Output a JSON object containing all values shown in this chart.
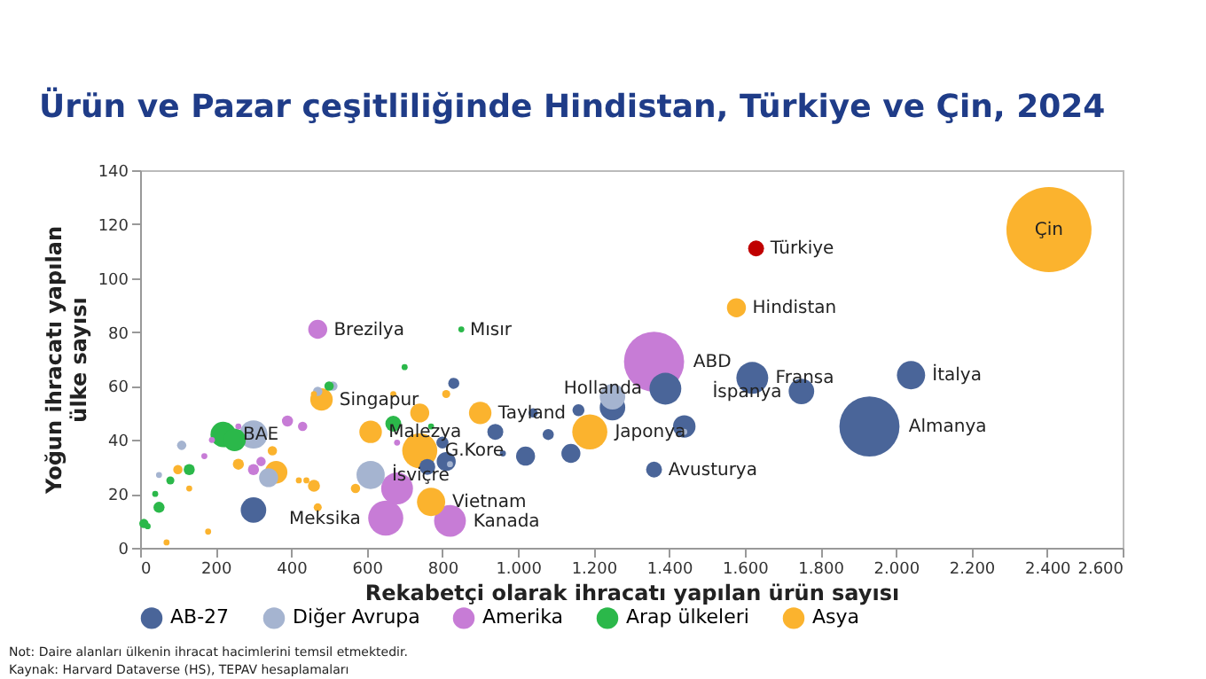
{
  "chart_data": {
    "type": "bubble",
    "title": "Ürün ve Pazar çeşitliliğinde Hindistan, Türkiye ve Çin, 2024",
    "xlabel": "Rekabetçi olarak ihracatı yapılan ürün sayısı",
    "ylabel": "Yoğun ihracatı yapılan\nülke sayısı",
    "xlim": [
      0,
      2600
    ],
    "xticks": [
      0,
      200,
      400,
      600,
      800,
      {
        "value": 1000,
        "label": "1.000"
      },
      {
        "value": 1200,
        "label": "1.200"
      },
      {
        "value": 1400,
        "label": "1.400"
      },
      {
        "value": 1600,
        "label": "1.600"
      },
      {
        "value": 1800,
        "label": "1.800"
      },
      {
        "value": 2000,
        "label": "2.000"
      },
      {
        "value": 2200,
        "label": "2.200"
      },
      {
        "value": 2400,
        "label": "2.400"
      },
      {
        "value": 2600,
        "label": "2.600"
      }
    ],
    "ylim": [
      0,
      140
    ],
    "yticks": [
      0,
      20,
      40,
      60,
      80,
      100,
      120,
      140
    ],
    "grid": false,
    "legend": "bottom",
    "series": [
      {
        "name": "AB-27",
        "color": "#4a6599",
        "x": [
          1930,
          2040,
          1620,
          1750,
          1390,
          1250,
          1440,
          1360,
          1140,
          1020,
          1160,
          1080,
          1040,
          940,
          800,
          810,
          760,
          830,
          960,
          300
        ],
        "values": [
          45,
          64,
          63,
          58,
          59,
          52,
          45,
          29,
          35,
          34,
          51,
          42,
          50,
          43,
          39,
          32,
          30,
          61,
          35,
          14
        ],
        "sizes": [
          0.5,
          0.11,
          0.14,
          0.09,
          0.14,
          0.09,
          0.07,
          0.035,
          0.05,
          0.05,
          0.02,
          0.017,
          0.012,
          0.035,
          0.02,
          0.05,
          0.035,
          0.017,
          0.005,
          0.09
        ]
      },
      {
        "name": "Diğer Avrupa",
        "color": "#a5b4d0",
        "x": [
          610,
          1250,
          300,
          340,
          470,
          510,
          110,
          50,
          1440,
          820
        ],
        "values": [
          27,
          56,
          42,
          26,
          58,
          60,
          38,
          27,
          43,
          31
        ],
        "sizes": [
          0.11,
          0.09,
          0.11,
          0.05,
          0.012,
          0.012,
          0.012,
          0.005,
          0.005,
          0.005
        ]
      },
      {
        "name": "Amerika",
        "color": "#c77cd6",
        "x": [
          1360,
          470,
          650,
          820,
          680,
          390,
          430,
          300,
          320,
          170,
          260,
          190,
          680
        ],
        "values": [
          69,
          81,
          11,
          10,
          22,
          47,
          45,
          29,
          32,
          34,
          45,
          40,
          39
        ],
        "sizes": [
          0.5,
          0.05,
          0.17,
          0.14,
          0.14,
          0.017,
          0.012,
          0.017,
          0.012,
          0.005,
          0.005,
          0.005,
          0.005
        ]
      },
      {
        "name": "Arap ülkeleri",
        "color": "#2bb84a",
        "x": [
          220,
          250,
          850,
          670,
          130,
          80,
          50,
          10,
          40,
          20,
          770,
          700,
          500
        ],
        "values": [
          42,
          40,
          81,
          46,
          29,
          25,
          15,
          9,
          20,
          8,
          45,
          67,
          60
        ],
        "sizes": [
          0.09,
          0.07,
          0.005,
          0.035,
          0.017,
          0.009,
          0.017,
          0.012,
          0.005,
          0.005,
          0.005,
          0.005,
          0.012
        ]
      },
      {
        "name": "Asya",
        "color": "#fbb32e",
        "x": [
          2405,
          1578,
          1190,
          900,
          740,
          770,
          610,
          480,
          740,
          360,
          260,
          350,
          100,
          460,
          470,
          570,
          810,
          130,
          460,
          670,
          70,
          180,
          420,
          440
        ],
        "values": [
          118,
          89,
          43,
          50,
          36,
          17,
          43,
          55,
          50,
          28,
          31,
          36,
          29,
          23,
          15,
          22,
          57,
          22,
          57,
          57,
          2,
          6,
          25,
          25
        ],
        "sizes": [
          1,
          0.05,
          0.17,
          0.07,
          0.17,
          0.11,
          0.07,
          0.07,
          0.05,
          0.07,
          0.017,
          0.012,
          0.012,
          0.02,
          0.009,
          0.012,
          0.009,
          0.005,
          0.005,
          0.005,
          0.005,
          0.005,
          0.005,
          0.005
        ]
      },
      {
        "color": "#c00000",
        "x": [
          1630
        ],
        "values": [
          111
        ],
        "sizes": [
          0.035
        ]
      }
    ],
    "annotations": [
      {
        "text": "Çin",
        "x": 2405,
        "y": 118
      },
      {
        "text": "Türkiye",
        "x": 1630,
        "y": 111
      },
      {
        "text": "Hindistan",
        "x": 1578,
        "y": 89
      },
      {
        "text": "ABD",
        "x": 1360,
        "y": 69
      },
      {
        "text": "Fransa",
        "x": 1620,
        "y": 63
      },
      {
        "text": "Hollanda",
        "x": 1390,
        "y": 59
      },
      {
        "text": "İspanya",
        "x": 1750,
        "y": 58
      },
      {
        "text": "İtalya",
        "x": 2040,
        "y": 64
      },
      {
        "text": "Almanya",
        "x": 1930,
        "y": 45
      },
      {
        "text": "Avusturya",
        "x": 1360,
        "y": 29
      },
      {
        "text": "Japonya",
        "x": 1190,
        "y": 43
      },
      {
        "text": "Tayland",
        "x": 900,
        "y": 50
      },
      {
        "text": "G.Kore",
        "x": 740,
        "y": 36
      },
      {
        "text": "Malezya",
        "x": 610,
        "y": 43
      },
      {
        "text": "Singapur",
        "x": 480,
        "y": 55
      },
      {
        "text": "Brezilya",
        "x": 470,
        "y": 81
      },
      {
        "text": "Mısır",
        "x": 850,
        "y": 81
      },
      {
        "text": "BAE",
        "x": 220,
        "y": 42
      },
      {
        "text": "İsviçre",
        "x": 610,
        "y": 27
      },
      {
        "text": "Vietnam",
        "x": 770,
        "y": 17
      },
      {
        "text": "Kanada",
        "x": 820,
        "y": 10
      },
      {
        "text": "Meksika",
        "x": 650,
        "y": 11
      },
      "Not: Daire alanları ülkenin ihracat hacimlerini temsil etmektedir.",
      "Kaynak: Harvard Dataverse (HS), TEPAV hesaplamaları"
    ]
  }
}
